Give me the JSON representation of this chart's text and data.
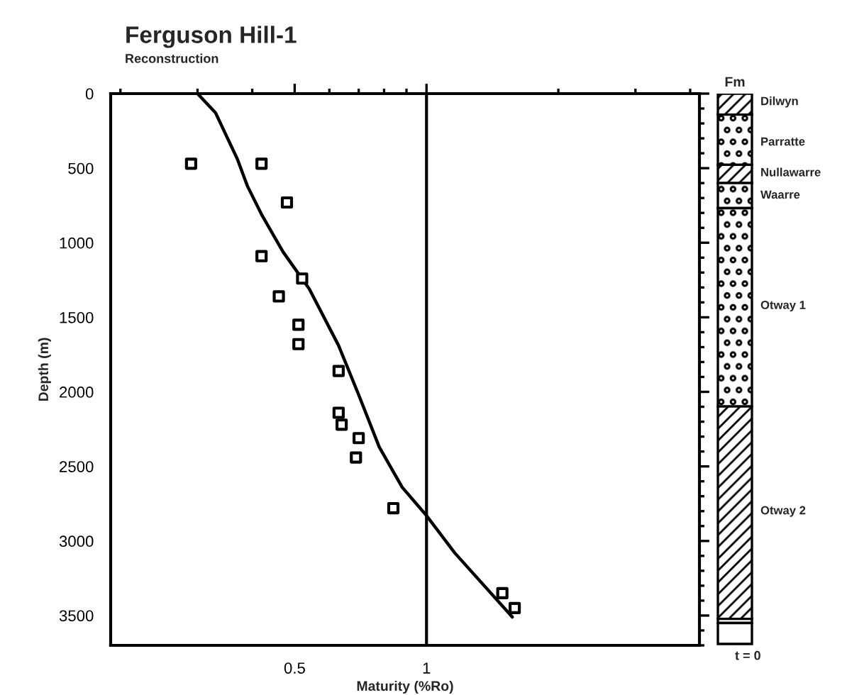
{
  "chart_data": [
    {
      "type": "scatter",
      "title": "Ferguson Hill-1",
      "subtitle": "Reconstruction",
      "xlabel": "Maturity (%Ro)",
      "ylabel": "Depth (m)",
      "log": "x",
      "xlim": [
        0.19,
        4.2
      ],
      "xticks": [
        0.5,
        1
      ],
      "ylim": [
        3700,
        0
      ],
      "yticks": [
        0,
        500,
        1000,
        1500,
        2000,
        2500,
        3000,
        3500
      ],
      "grid": false,
      "legend": false,
      "marker": "square",
      "ref_lines": [
        {
          "axis": "x",
          "value": 1,
          "color": "#000000",
          "line_style": "solid"
        }
      ],
      "series": [
        {
          "color": "#000000",
          "x": [
            0.29,
            0.42,
            0.48,
            0.42,
            0.52,
            0.46,
            0.51,
            0.51,
            0.63,
            0.63,
            0.64,
            0.7,
            0.69,
            0.84,
            1.49,
            1.59
          ],
          "values": [
            470,
            470,
            730,
            1090,
            1240,
            1360,
            1550,
            1680,
            1860,
            2140,
            2220,
            2310,
            2440,
            2780,
            3350,
            3450
          ]
        },
        {
          "type": "line",
          "color": "#000000",
          "marker": "none",
          "line_style": "solid",
          "x": [
            0.3,
            0.33,
            0.37,
            0.39,
            0.42,
            0.47,
            0.54,
            0.63,
            0.7,
            0.78,
            0.88,
            1.0,
            1.16,
            1.57
          ],
          "values": [
            0,
            130,
            440,
            620,
            810,
            1060,
            1310,
            1690,
            2020,
            2370,
            2640,
            2830,
            3080,
            3510
          ]
        }
      ]
    },
    {
      "type": "other",
      "title": "Fm",
      "annotations": [
        "Dilwyn",
        "Parratte",
        "Nullawarre",
        "Waarre",
        "Otway 1",
        "Otway 2",
        "t = 0"
      ]
    }
  ]
}
